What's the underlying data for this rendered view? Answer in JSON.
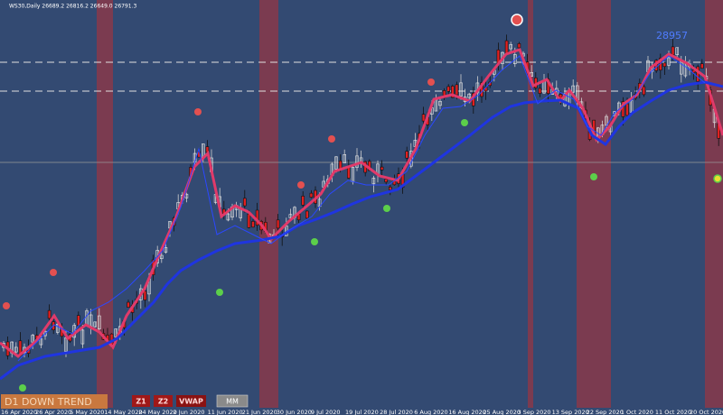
{
  "header": {
    "symbol_info": "WS30,Daily  26689.2 26816.2 26649.0 26791.3"
  },
  "price_label": "28957",
  "trend_label": "D1 DOWN TREND",
  "buttons": [
    "Z1",
    "Z2",
    "VWAP",
    "MM"
  ],
  "x_axis": {
    "dates": [
      "16 Apr 2020",
      "26 Apr 2020",
      "5 May 2020",
      "14 May 2020",
      "24 May 2020",
      "2 Jun 2020",
      "11 Jun 2020",
      "21 Jun 2020",
      "30 Jun 2020",
      "9 Jul 2020",
      "19 Jul 2020",
      "28 Jul 2020",
      "6 Aug 2020",
      "16 Aug 2020",
      "25 Aug 2020",
      "3 Sep 2020",
      "13 Sep 2020",
      "22 Sep 2020",
      "1 Oct 2020",
      "11 Oct 2020",
      "20 Oct 2020"
    ]
  }
}
